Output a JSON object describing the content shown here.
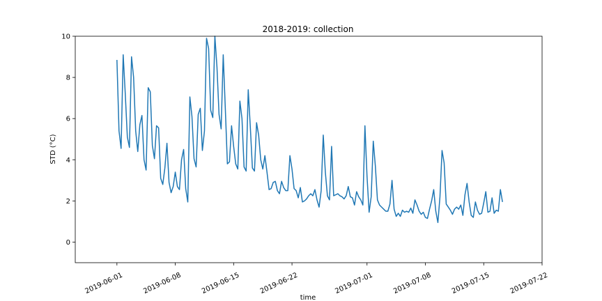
{
  "chart_data": {
    "type": "line",
    "title": "2018-2019: collection",
    "xlabel": "time",
    "ylabel": "STD (°C)",
    "ylim": [
      -1,
      10
    ],
    "yticks": [
      0,
      2,
      4,
      6,
      8,
      10
    ],
    "xlim": [
      "2019-05-27",
      "2019-07-22"
    ],
    "xticks": [
      "2019-06-01",
      "2019-06-08",
      "2019-06-15",
      "2019-06-22",
      "2019-07-01",
      "2019-07-08",
      "2019-07-15",
      "2019-07-22"
    ],
    "grid": false,
    "series": [
      {
        "color": "#1f77b4",
        "x": [
          "2019-06-01T00:00",
          "2019-06-01T06:00",
          "2019-06-01T12:00",
          "2019-06-01T18:00",
          "2019-06-02T00:00",
          "2019-06-02T06:00",
          "2019-06-02T12:00",
          "2019-06-02T18:00",
          "2019-06-03T00:00",
          "2019-06-03T06:00",
          "2019-06-03T12:00",
          "2019-06-03T18:00",
          "2019-06-04T00:00",
          "2019-06-04T06:00",
          "2019-06-04T12:00",
          "2019-06-04T18:00",
          "2019-06-05T00:00",
          "2019-06-05T06:00",
          "2019-06-05T12:00",
          "2019-06-05T18:00",
          "2019-06-06T00:00",
          "2019-06-06T06:00",
          "2019-06-06T12:00",
          "2019-06-06T18:00",
          "2019-06-07T00:00",
          "2019-06-07T06:00",
          "2019-06-07T12:00",
          "2019-06-07T18:00",
          "2019-06-08T00:00",
          "2019-06-08T06:00",
          "2019-06-08T12:00",
          "2019-06-08T18:00",
          "2019-06-09T00:00",
          "2019-06-09T06:00",
          "2019-06-09T12:00",
          "2019-06-09T18:00",
          "2019-06-10T00:00",
          "2019-06-10T06:00",
          "2019-06-10T12:00",
          "2019-06-10T18:00",
          "2019-06-11T00:00",
          "2019-06-11T06:00",
          "2019-06-11T12:00",
          "2019-06-11T18:00",
          "2019-06-12T00:00",
          "2019-06-12T06:00",
          "2019-06-12T12:00",
          "2019-06-12T18:00",
          "2019-06-13T00:00",
          "2019-06-13T06:00",
          "2019-06-13T12:00",
          "2019-06-13T18:00",
          "2019-06-14T00:00",
          "2019-06-14T06:00",
          "2019-06-14T12:00",
          "2019-06-14T18:00",
          "2019-06-15T00:00",
          "2019-06-15T06:00",
          "2019-06-15T12:00",
          "2019-06-15T18:00",
          "2019-06-16T00:00",
          "2019-06-16T06:00",
          "2019-06-16T12:00",
          "2019-06-16T18:00",
          "2019-06-17T00:00",
          "2019-06-17T06:00",
          "2019-06-17T12:00",
          "2019-06-17T18:00",
          "2019-06-18T00:00",
          "2019-06-18T06:00",
          "2019-06-18T12:00",
          "2019-06-18T18:00",
          "2019-06-19T00:00",
          "2019-06-19T06:00",
          "2019-06-19T12:00",
          "2019-06-19T18:00",
          "2019-06-20T00:00",
          "2019-06-20T06:00",
          "2019-06-20T12:00",
          "2019-06-20T18:00",
          "2019-06-21T00:00",
          "2019-06-21T06:00",
          "2019-06-21T12:00",
          "2019-06-21T18:00",
          "2019-06-22T00:00",
          "2019-06-22T06:00",
          "2019-06-22T12:00",
          "2019-06-22T18:00",
          "2019-06-23T00:00",
          "2019-06-23T06:00",
          "2019-06-23T12:00",
          "2019-06-23T18:00",
          "2019-06-24T00:00",
          "2019-06-24T06:00",
          "2019-06-24T12:00",
          "2019-06-24T18:00",
          "2019-06-25T00:00",
          "2019-06-25T06:00",
          "2019-06-25T12:00",
          "2019-06-25T18:00",
          "2019-06-26T00:00",
          "2019-06-26T06:00",
          "2019-06-26T12:00",
          "2019-06-26T18:00",
          "2019-06-27T00:00",
          "2019-06-27T06:00",
          "2019-06-27T12:00",
          "2019-06-27T18:00",
          "2019-06-28T00:00",
          "2019-06-28T06:00",
          "2019-06-28T12:00",
          "2019-06-28T18:00",
          "2019-06-29T00:00",
          "2019-06-29T06:00",
          "2019-06-29T12:00",
          "2019-06-29T18:00",
          "2019-06-30T00:00",
          "2019-06-30T06:00",
          "2019-06-30T12:00",
          "2019-06-30T18:00",
          "2019-07-01T00:00",
          "2019-07-01T06:00",
          "2019-07-01T12:00",
          "2019-07-01T18:00",
          "2019-07-02T00:00",
          "2019-07-02T06:00",
          "2019-07-02T12:00",
          "2019-07-02T18:00",
          "2019-07-03T00:00",
          "2019-07-03T06:00",
          "2019-07-03T12:00",
          "2019-07-03T18:00",
          "2019-07-04T00:00",
          "2019-07-04T06:00",
          "2019-07-04T12:00",
          "2019-07-04T18:00",
          "2019-07-05T00:00",
          "2019-07-05T06:00",
          "2019-07-05T12:00",
          "2019-07-05T18:00",
          "2019-07-06T00:00",
          "2019-07-06T06:00",
          "2019-07-06T12:00",
          "2019-07-06T18:00",
          "2019-07-07T00:00",
          "2019-07-07T06:00",
          "2019-07-07T12:00",
          "2019-07-07T18:00",
          "2019-07-08T00:00",
          "2019-07-08T06:00",
          "2019-07-08T12:00",
          "2019-07-08T18:00",
          "2019-07-09T00:00",
          "2019-07-09T06:00",
          "2019-07-09T12:00",
          "2019-07-09T18:00",
          "2019-07-10T00:00",
          "2019-07-10T06:00",
          "2019-07-10T12:00",
          "2019-07-10T18:00",
          "2019-07-11T00:00",
          "2019-07-11T06:00",
          "2019-07-11T12:00",
          "2019-07-11T18:00",
          "2019-07-12T00:00",
          "2019-07-12T06:00",
          "2019-07-12T12:00",
          "2019-07-12T18:00",
          "2019-07-13T00:00",
          "2019-07-13T06:00",
          "2019-07-13T12:00",
          "2019-07-13T18:00",
          "2019-07-14T00:00",
          "2019-07-14T06:00",
          "2019-07-14T12:00",
          "2019-07-14T18:00",
          "2019-07-15T00:00",
          "2019-07-15T06:00",
          "2019-07-15T12:00",
          "2019-07-15T18:00",
          "2019-07-16T00:00",
          "2019-07-16T06:00",
          "2019-07-16T12:00",
          "2019-07-16T18:00",
          "2019-07-17T00:00",
          "2019-07-17T06:00"
        ],
        "y": [
          8.85,
          5.4,
          4.55,
          9.1,
          7.2,
          5.1,
          4.6,
          9.0,
          8.0,
          5.4,
          4.4,
          5.7,
          6.15,
          4.0,
          3.5,
          7.5,
          7.3,
          4.7,
          4.05,
          5.65,
          5.55,
          3.1,
          2.8,
          3.6,
          4.8,
          2.9,
          2.4,
          2.7,
          3.4,
          2.7,
          2.55,
          4.0,
          4.5,
          2.6,
          1.95,
          7.05,
          6.1,
          4.05,
          3.65,
          6.2,
          6.5,
          4.45,
          5.4,
          9.9,
          9.4,
          6.4,
          6.05,
          10.0,
          8.5,
          6.2,
          5.5,
          9.1,
          6.5,
          3.8,
          3.9,
          5.65,
          4.65,
          3.8,
          3.55,
          6.85,
          6.0,
          3.65,
          3.45,
          7.4,
          5.6,
          3.6,
          3.45,
          5.8,
          5.2,
          4.0,
          3.55,
          4.2,
          3.4,
          2.55,
          2.6,
          2.9,
          2.95,
          2.5,
          2.35,
          2.95,
          2.65,
          2.5,
          2.5,
          4.2,
          3.55,
          2.6,
          2.5,
          2.15,
          2.65,
          1.95,
          2.0,
          2.1,
          2.25,
          2.35,
          2.25,
          2.55,
          2.05,
          1.7,
          2.5,
          5.2,
          3.4,
          2.25,
          2.05,
          4.65,
          2.25,
          2.3,
          2.35,
          2.25,
          2.2,
          2.1,
          2.25,
          2.7,
          2.2,
          2.15,
          1.8,
          2.45,
          2.2,
          2.05,
          1.8,
          5.65,
          3.2,
          1.45,
          2.2,
          4.9,
          3.7,
          2.05,
          1.8,
          1.7,
          1.6,
          1.5,
          1.5,
          1.85,
          3.0,
          1.6,
          1.25,
          1.4,
          1.25,
          1.55,
          1.45,
          1.5,
          1.45,
          1.65,
          1.4,
          2.05,
          1.8,
          1.5,
          1.35,
          1.45,
          1.2,
          1.15,
          1.6,
          2.0,
          2.55,
          1.5,
          0.95,
          2.2,
          4.45,
          3.85,
          1.85,
          1.7,
          1.55,
          1.35,
          1.6,
          1.7,
          1.6,
          1.8,
          1.3,
          2.3,
          2.85,
          1.95,
          1.3,
          1.2,
          1.95,
          1.55,
          1.35,
          1.4,
          1.9,
          2.45,
          1.45,
          1.5,
          2.15,
          1.4,
          1.55,
          1.5,
          2.55,
          1.95
        ]
      }
    ]
  }
}
